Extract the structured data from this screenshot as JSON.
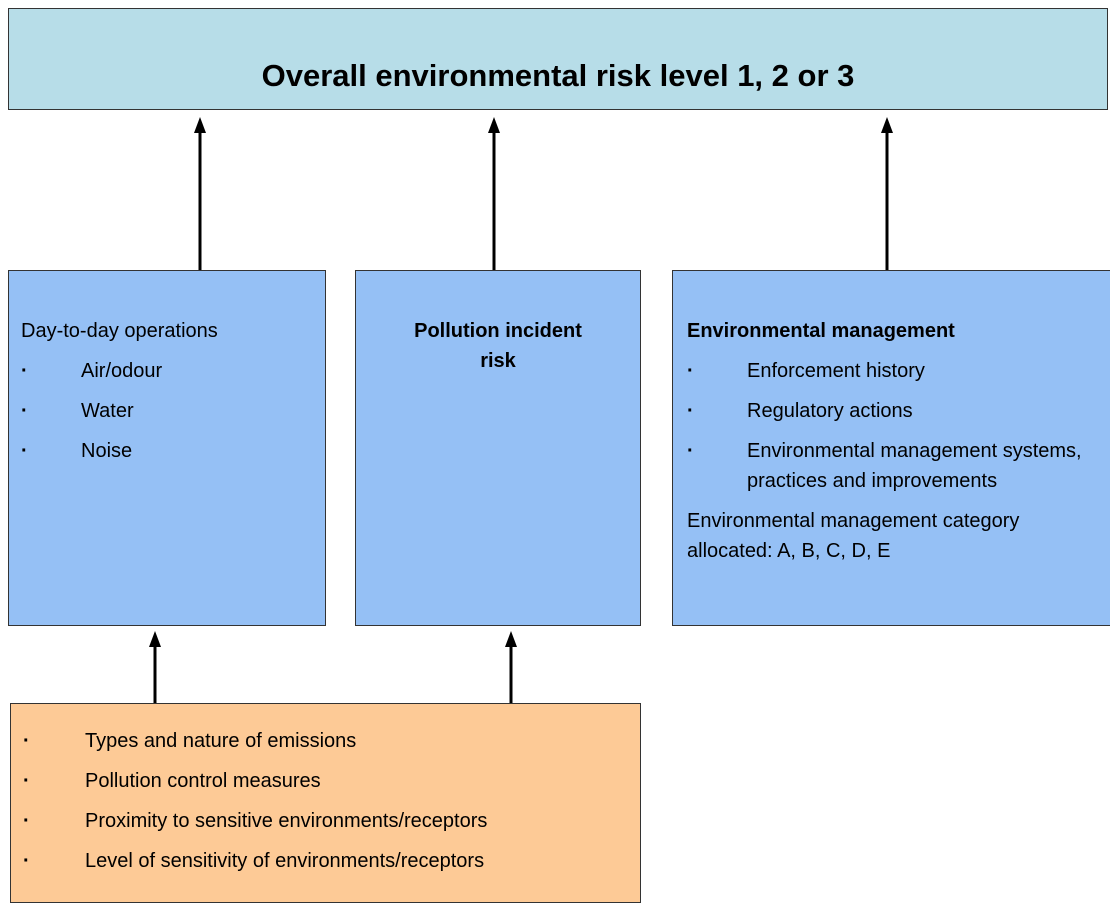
{
  "title": "Overall environmental risk level 1, 2 or 3",
  "boxes": [
    {
      "heading": "Day-to-day operations",
      "items": [
        "Air/odour",
        "Water",
        "Noise"
      ]
    },
    {
      "heading": "Pollution incident risk"
    },
    {
      "heading": "Environmental management",
      "items": [
        "Enforcement history",
        "Regulatory actions",
        "Environmental management systems, practices and improvements"
      ],
      "note": "Environmental management category allocated: A, B, C, D, E"
    }
  ],
  "factors": {
    "items": [
      "Types and nature of emissions",
      "Pollution control measures",
      "Proximity to sensitive environments/receptors",
      "Level of sensitivity of environments/receptors"
    ]
  }
}
